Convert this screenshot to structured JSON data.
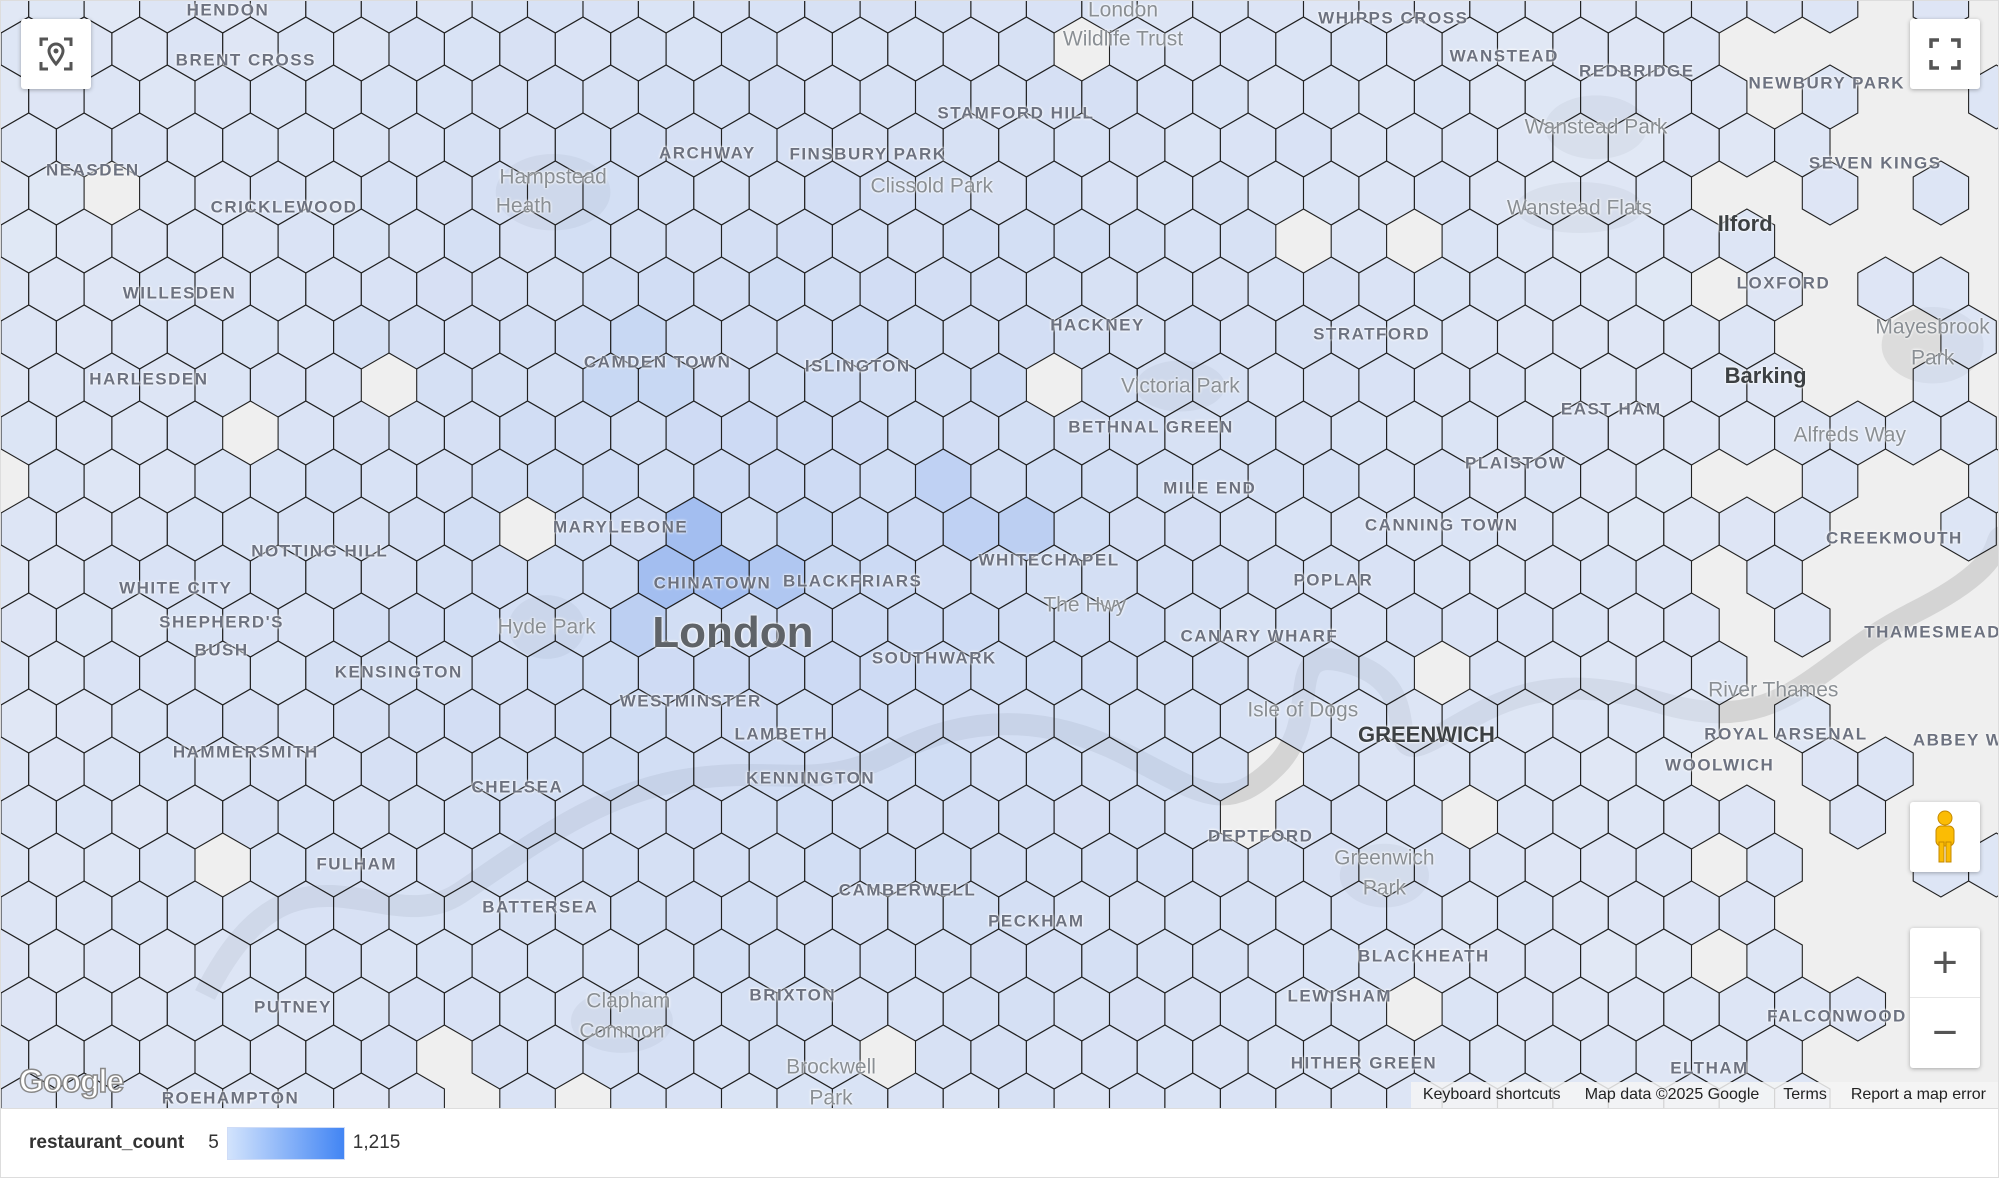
{
  "map": {
    "labels": [
      {
        "text": "HENDON",
        "type": "district"
      },
      {
        "text": "BRENT CROSS",
        "type": "district"
      },
      {
        "text": "NEASDEN",
        "type": "district"
      },
      {
        "text": "CRICKLEWOOD",
        "type": "district"
      },
      {
        "text": "WILLESDEN",
        "type": "district"
      },
      {
        "text": "HARLESDEN",
        "type": "district"
      },
      {
        "text": "NOTTING HILL",
        "type": "district"
      },
      {
        "text": "WHITE CITY",
        "type": "district"
      },
      {
        "text": "SHEPHERD'S",
        "type": "district"
      },
      {
        "text": "BUSH",
        "type": "district"
      },
      {
        "text": "KENSINGTON",
        "type": "district"
      },
      {
        "text": "HAMMERSMITH",
        "type": "district"
      },
      {
        "text": "CHELSEA",
        "type": "district"
      },
      {
        "text": "FULHAM",
        "type": "district"
      },
      {
        "text": "BATTERSEA",
        "type": "district"
      },
      {
        "text": "PUTNEY",
        "type": "district"
      },
      {
        "text": "ROEHAMPTON",
        "type": "district"
      },
      {
        "text": "Hampstead",
        "type": "park"
      },
      {
        "text": "Heath",
        "type": "park"
      },
      {
        "text": "ARCHWAY",
        "type": "district"
      },
      {
        "text": "FINSBURY PARK",
        "type": "district"
      },
      {
        "text": "STAMFORD HILL",
        "type": "district"
      },
      {
        "text": "Clissold Park",
        "type": "park"
      },
      {
        "text": "London",
        "type": "park"
      },
      {
        "text": "Wildlife Trust",
        "type": "park"
      },
      {
        "text": "WHIPPS CROSS",
        "type": "district"
      },
      {
        "text": "CAMDEN TOWN",
        "type": "district"
      },
      {
        "text": "ISLINGTON",
        "type": "district"
      },
      {
        "text": "HACKNEY",
        "type": "district"
      },
      {
        "text": "Victoria Park",
        "type": "park"
      },
      {
        "text": "BETHNAL GREEN",
        "type": "district"
      },
      {
        "text": "MILE END",
        "type": "district"
      },
      {
        "text": "MARYLEBONE",
        "type": "district"
      },
      {
        "text": "CHINATOWN",
        "type": "district"
      },
      {
        "text": "BLACKFRIARS",
        "type": "district"
      },
      {
        "text": "WHITECHAPEL",
        "type": "district"
      },
      {
        "text": "The Hwy",
        "type": "park"
      },
      {
        "text": "London",
        "type": "city"
      },
      {
        "text": "Hyde Park",
        "type": "park"
      },
      {
        "text": "SOUTHWARK",
        "type": "district"
      },
      {
        "text": "WESTMINSTER",
        "type": "district"
      },
      {
        "text": "LAMBETH",
        "type": "district"
      },
      {
        "text": "KENNINGTON",
        "type": "district"
      },
      {
        "text": "CAMBERWELL",
        "type": "district"
      },
      {
        "text": "PECKHAM",
        "type": "district"
      },
      {
        "text": "BRIXTON",
        "type": "district"
      },
      {
        "text": "Clapham",
        "type": "park"
      },
      {
        "text": "Common",
        "type": "park"
      },
      {
        "text": "Brockwell",
        "type": "park"
      },
      {
        "text": "Park",
        "type": "park"
      },
      {
        "text": "STRATFORD",
        "type": "district"
      },
      {
        "text": "CANNING TOWN",
        "type": "district"
      },
      {
        "text": "POPLAR",
        "type": "district"
      },
      {
        "text": "CANARY WHARF",
        "type": "district"
      },
      {
        "text": "Isle of Dogs",
        "type": "park"
      },
      {
        "text": "GREENWICH",
        "type": "town"
      },
      {
        "text": "DEPTFORD",
        "type": "district"
      },
      {
        "text": "Greenwich",
        "type": "park"
      },
      {
        "text": "Park",
        "type": "park"
      },
      {
        "text": "BLACKHEATH",
        "type": "district"
      },
      {
        "text": "LEWISHAM",
        "type": "district"
      },
      {
        "text": "HITHER GREEN",
        "type": "district"
      },
      {
        "text": "ELTHAM",
        "type": "district"
      },
      {
        "text": "WANSTEAD",
        "type": "district"
      },
      {
        "text": "REDBRIDGE",
        "type": "district"
      },
      {
        "text": "Wanstead Park",
        "type": "park"
      },
      {
        "text": "NEWBURY PARK",
        "type": "district"
      },
      {
        "text": "SEVEN KINGS",
        "type": "district"
      },
      {
        "text": "Wanstead Flats",
        "type": "park"
      },
      {
        "text": "Ilford",
        "type": "town"
      },
      {
        "text": "LOXFORD",
        "type": "district"
      },
      {
        "text": "Mayesbrook",
        "type": "park"
      },
      {
        "text": "Park",
        "type": "park"
      },
      {
        "text": "Barking",
        "type": "town"
      },
      {
        "text": "EAST HAM",
        "type": "district"
      },
      {
        "text": "PLAISTOW",
        "type": "district"
      },
      {
        "text": "CREEKMOUTH",
        "type": "district"
      },
      {
        "text": "THAMESMEAD",
        "type": "district"
      },
      {
        "text": "ROYAL ARSENAL",
        "type": "district"
      },
      {
        "text": "WOOLWICH",
        "type": "district"
      },
      {
        "text": "ABBEY W",
        "type": "district"
      },
      {
        "text": "FALCONWOOD",
        "type": "district"
      },
      {
        "text": "Alfreds Way",
        "type": "park"
      },
      {
        "text": "River Thames",
        "type": "park"
      }
    ],
    "google_logo": "Google",
    "attribution": {
      "keyboard_shortcuts": "Keyboard shortcuts",
      "map_data": "Map data ©2025 Google",
      "terms": "Terms",
      "report": "Report a map error"
    },
    "controls": {
      "locate_icon": "location-target-icon",
      "fullscreen_icon": "fullscreen-icon",
      "pegman_icon": "street-view-pegman-icon",
      "zoom_in": "+",
      "zoom_out": "−"
    }
  },
  "legend": {
    "title": "restaurant_count",
    "min": "5",
    "max": "1,215",
    "color_low": "#d2e3fc",
    "color_high": "#4285f4"
  },
  "colors": {
    "hex_stroke": "#222222",
    "water": "#d4d4d4",
    "park": "#dcdcdc"
  }
}
